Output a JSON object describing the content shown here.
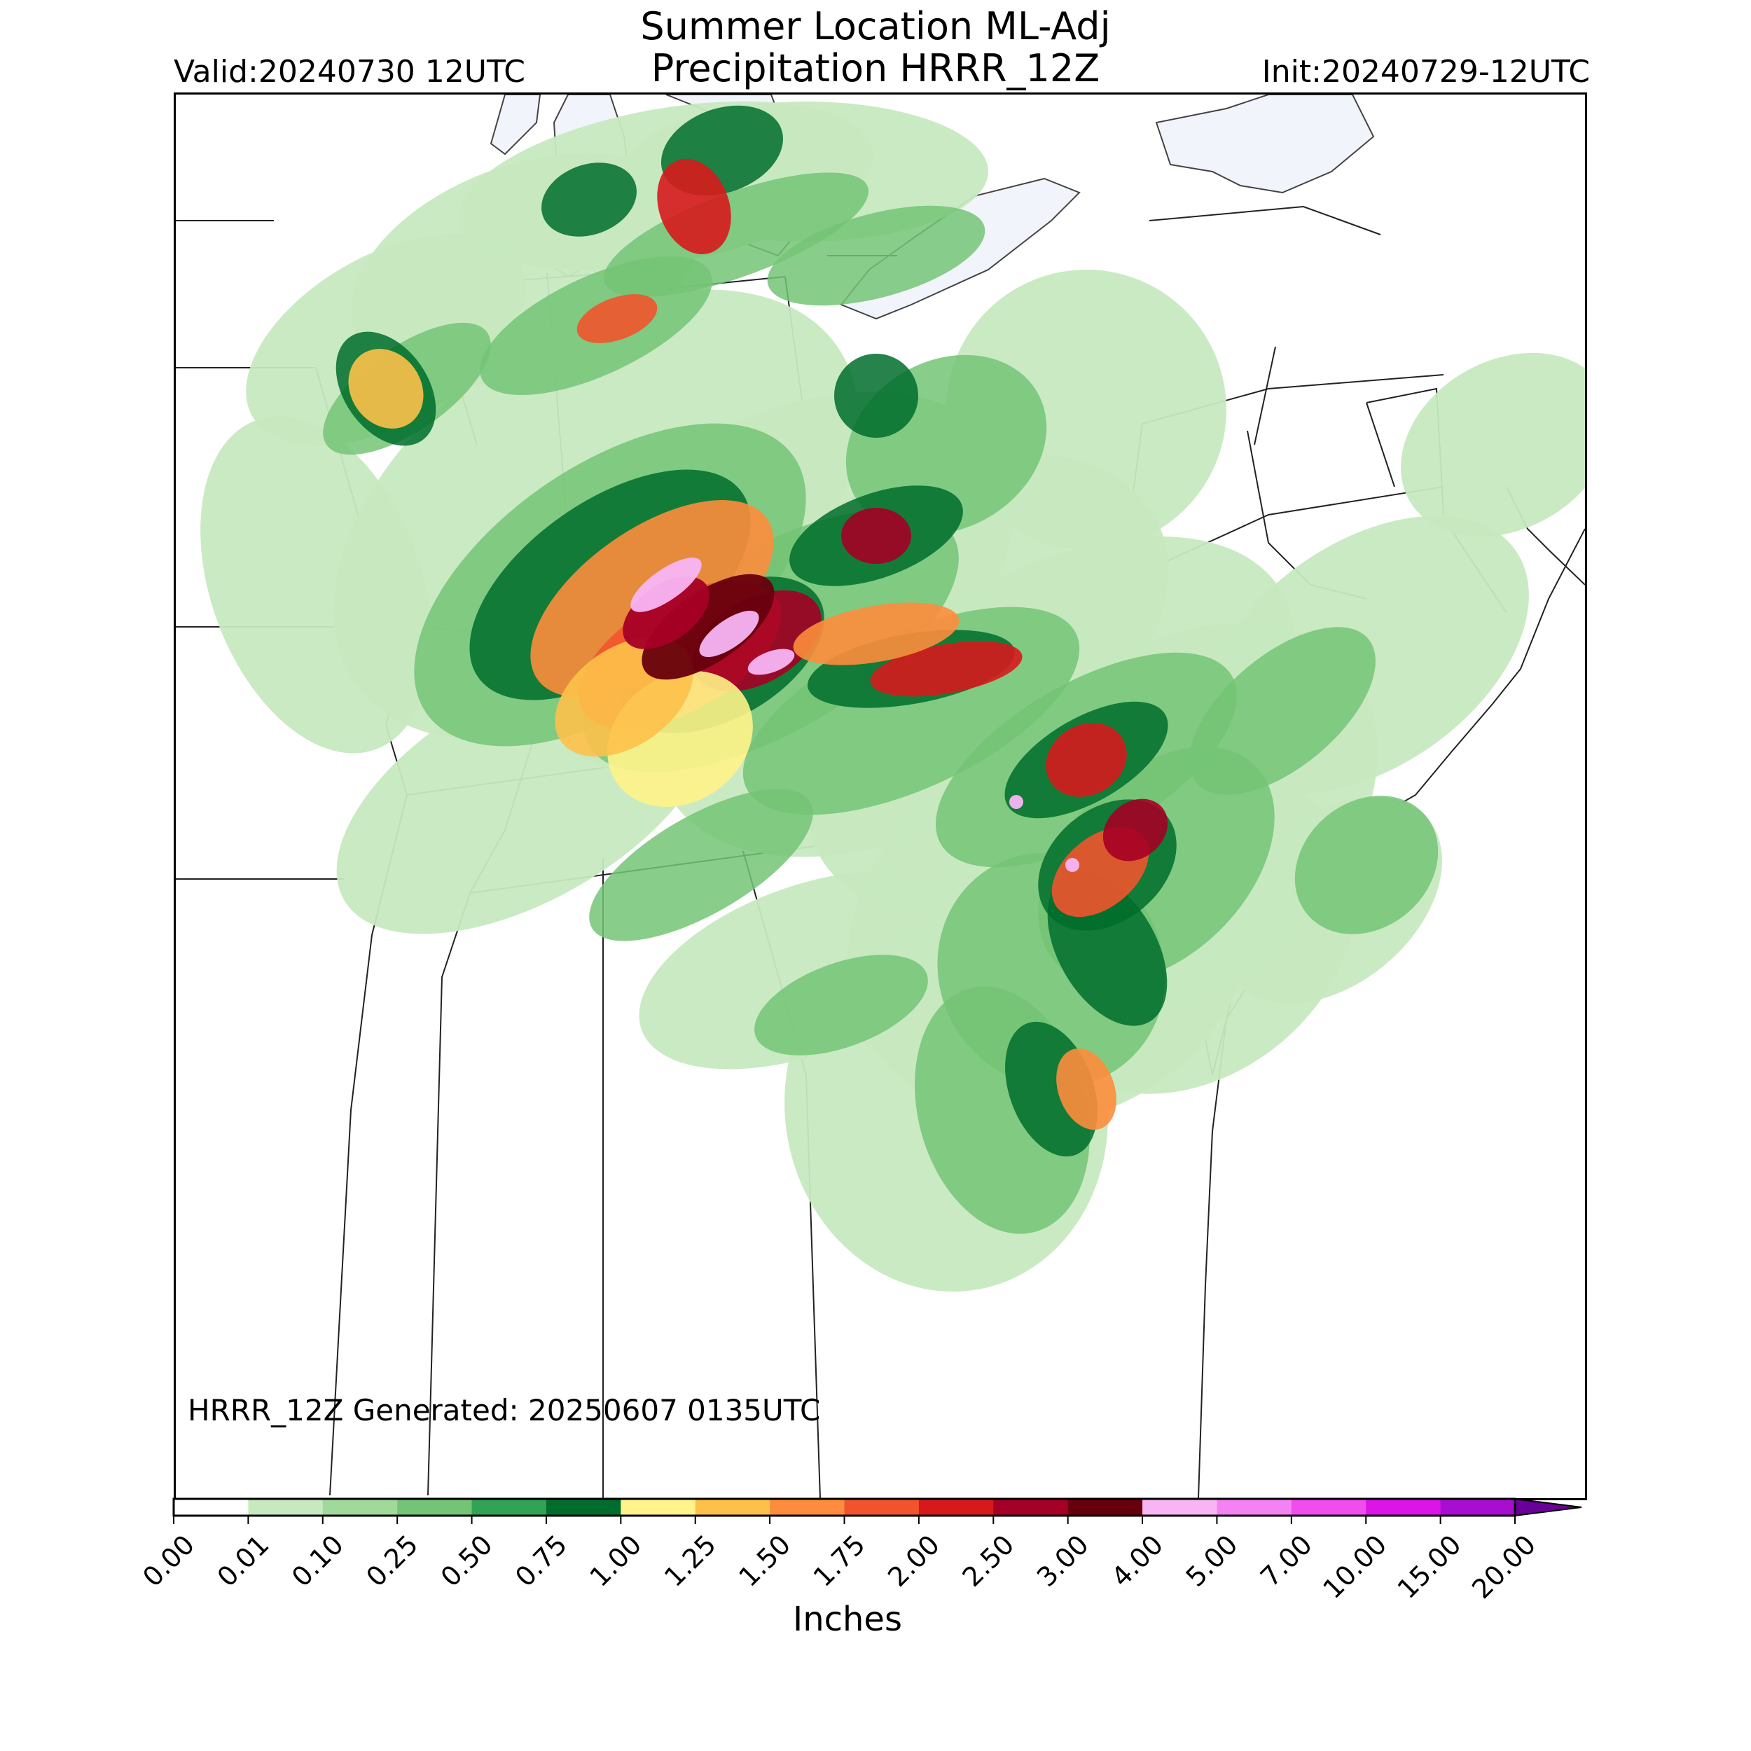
{
  "header": {
    "title_line1": "Summer Location ML-Adj",
    "title_line2": "Precipitation HRRR_12Z",
    "valid": "Valid:20240730 12UTC",
    "init": "Init:20240729-12UTC"
  },
  "map": {
    "generated_label": "HRRR_12Z Generated: 20250607 0135UTC",
    "background": "#ffffff",
    "lake_color": "#f1f4fa",
    "border_color": "#222222"
  },
  "colorbar": {
    "units": "Inches",
    "ticks": [
      "0.00",
      "0.01",
      "0.10",
      "0.25",
      "0.50",
      "0.75",
      "1.00",
      "1.25",
      "1.50",
      "1.75",
      "2.00",
      "2.50",
      "3.00",
      "4.00",
      "5.00",
      "7.00",
      "10.00",
      "15.00",
      "20.00"
    ],
    "colors": [
      "#ffffff",
      "#c7e9c0",
      "#a1d99b",
      "#74c476",
      "#31a354",
      "#006d2c",
      "#fff38a",
      "#fdc14a",
      "#fd8d3c",
      "#f1542c",
      "#d7191c",
      "#a50026",
      "#67000d",
      "#f8b5f4",
      "#f582f2",
      "#f04cee",
      "#dc14e8",
      "#a80ed0"
    ],
    "extend_color": "#6a0099"
  }
}
